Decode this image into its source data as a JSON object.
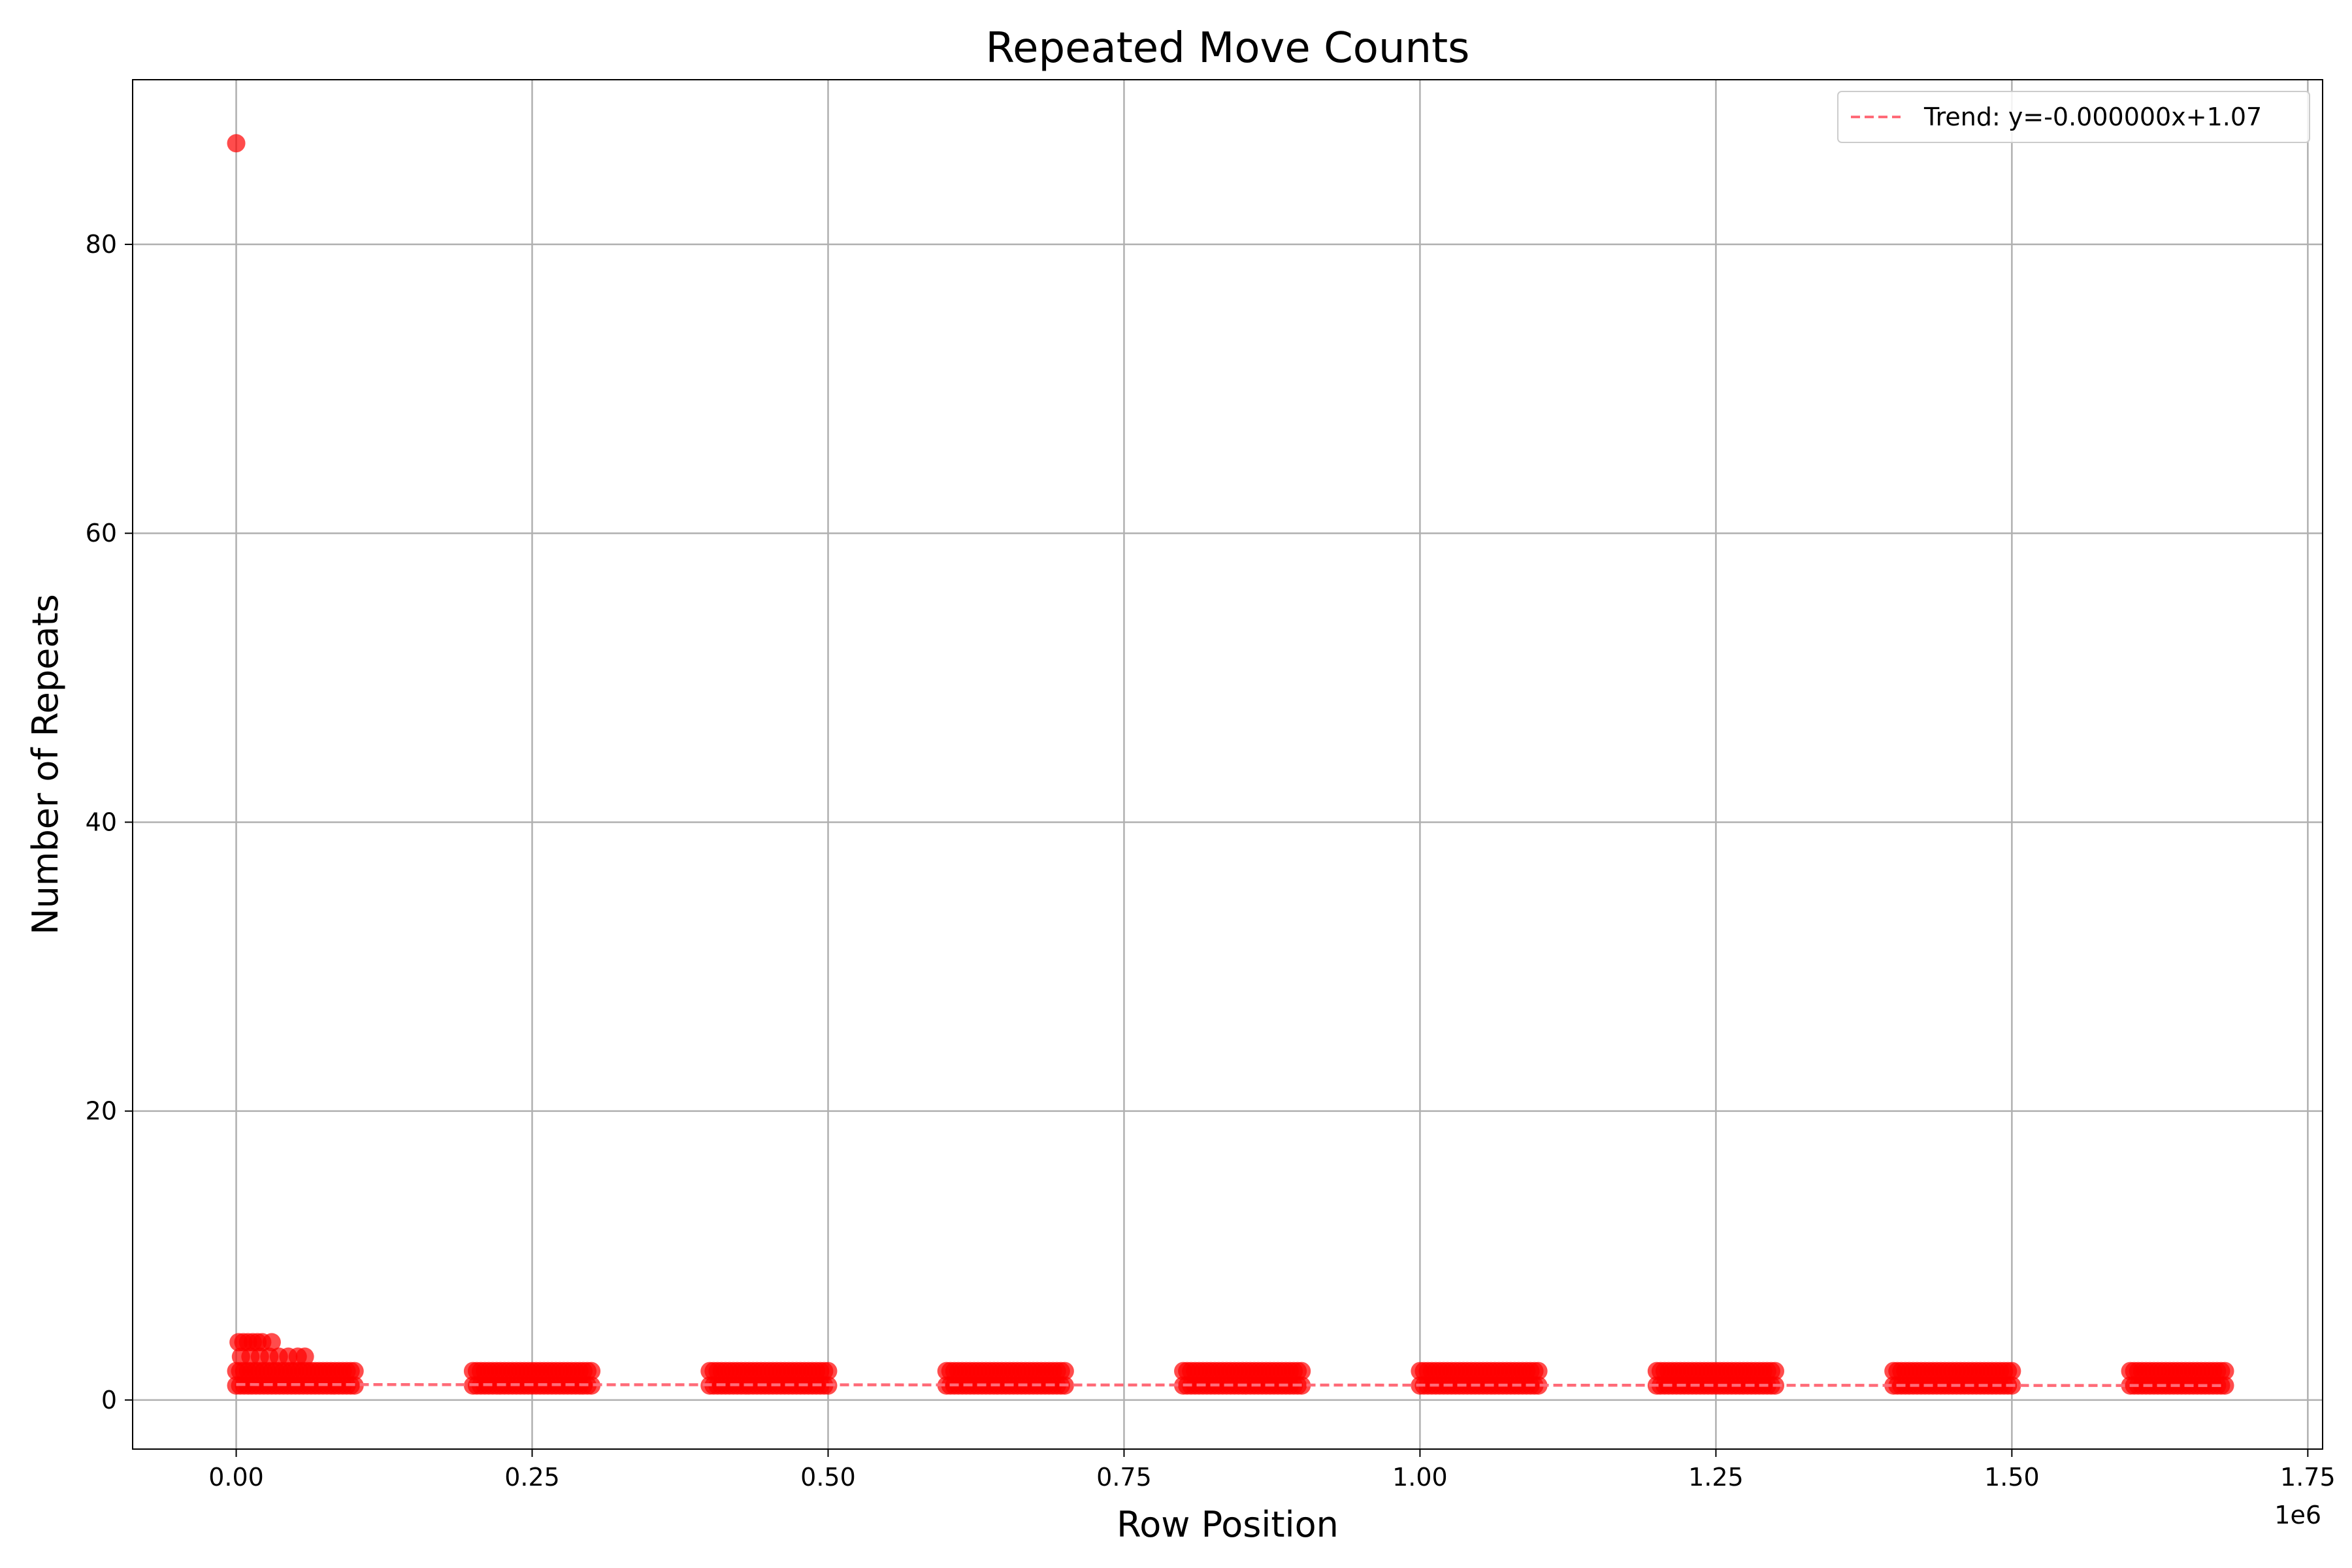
{
  "chart_data": {
    "type": "scatter",
    "title": "Repeated Move Counts",
    "xlabel": "Row Position",
    "ylabel": "Number of Repeats",
    "x_offset_label": "1e6",
    "xlim": [
      -87500,
      1762500
    ],
    "ylim": [
      -3.4,
      91.4
    ],
    "x_ticks": [
      0,
      250000,
      500000,
      750000,
      1000000,
      1250000,
      1500000,
      1750000
    ],
    "x_tick_labels": [
      "0.00",
      "0.25",
      "0.50",
      "0.75",
      "1.00",
      "1.25",
      "1.50",
      "1.75"
    ],
    "y_ticks": [
      0,
      20,
      40,
      60,
      80
    ],
    "y_tick_labels": [
      "0",
      "20",
      "40",
      "60",
      "80"
    ],
    "grid": true,
    "legend_position": "top-right",
    "point_color": "#ff0000",
    "trend_color": "#ff6b78",
    "series": [
      {
        "type": "scatter",
        "outliers": [
          {
            "x": 0,
            "y": 87
          },
          {
            "x": 2000,
            "y": 4
          },
          {
            "x": 6000,
            "y": 4
          },
          {
            "x": 10000,
            "y": 4
          },
          {
            "x": 14000,
            "y": 4
          },
          {
            "x": 18000,
            "y": 4
          },
          {
            "x": 22000,
            "y": 4
          },
          {
            "x": 30000,
            "y": 4
          },
          {
            "x": 4000,
            "y": 3
          },
          {
            "x": 12000,
            "y": 3
          },
          {
            "x": 20000,
            "y": 3
          },
          {
            "x": 28000,
            "y": 3
          },
          {
            "x": 36000,
            "y": 3
          },
          {
            "x": 44000,
            "y": 3
          },
          {
            "x": 52000,
            "y": 3
          },
          {
            "x": 58000,
            "y": 3
          }
        ],
        "dense_clusters": [
          {
            "x_start": 0,
            "x_end": 100000,
            "y_values": [
              1,
              2
            ]
          },
          {
            "x_start": 200000,
            "x_end": 300000,
            "y_values": [
              1,
              2
            ]
          },
          {
            "x_start": 400000,
            "x_end": 500000,
            "y_values": [
              1,
              2
            ]
          },
          {
            "x_start": 600000,
            "x_end": 700000,
            "y_values": [
              1,
              2
            ]
          },
          {
            "x_start": 800000,
            "x_end": 900000,
            "y_values": [
              1,
              2
            ]
          },
          {
            "x_start": 1000000,
            "x_end": 1100000,
            "y_values": [
              1,
              2
            ]
          },
          {
            "x_start": 1200000,
            "x_end": 1300000,
            "y_values": [
              1,
              2
            ]
          },
          {
            "x_start": 1400000,
            "x_end": 1500000,
            "y_values": [
              1,
              2
            ]
          },
          {
            "x_start": 1600000,
            "x_end": 1680000,
            "y_values": [
              1,
              2
            ]
          }
        ]
      },
      {
        "type": "line",
        "name": "Trend: y=-0.000000x+1.07",
        "x": [
          0,
          1680000
        ],
        "y": [
          1.07,
          1.0
        ],
        "style": "dashed"
      }
    ]
  }
}
